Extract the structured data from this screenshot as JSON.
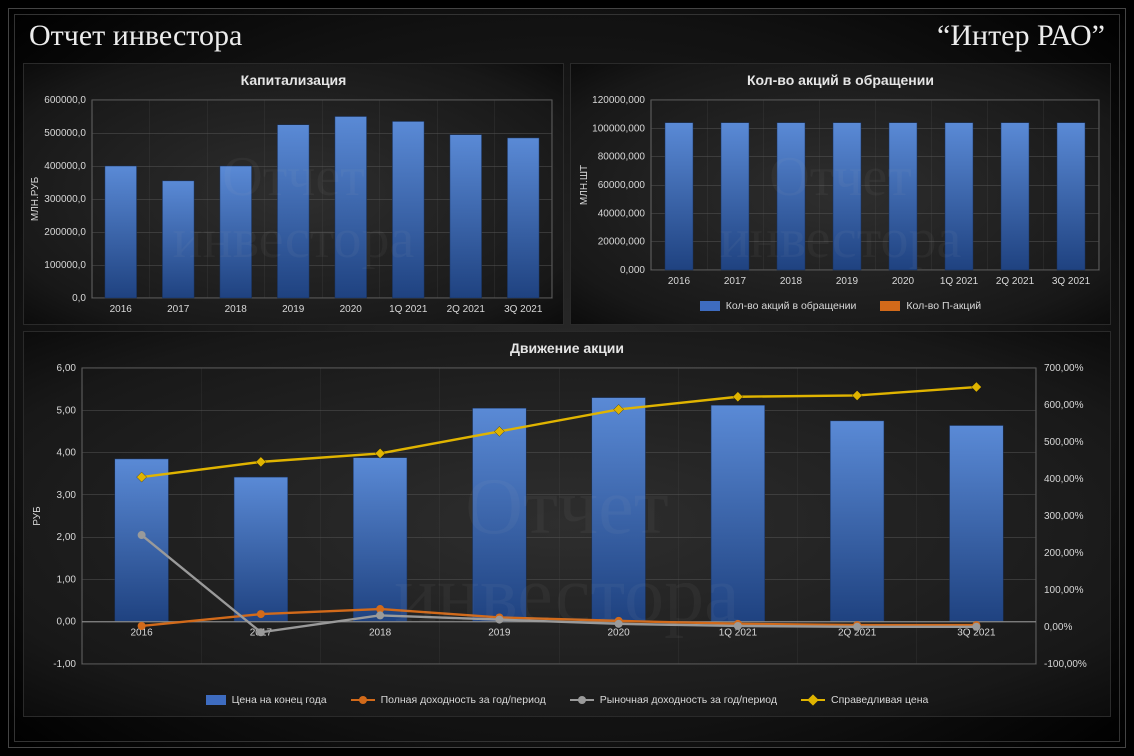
{
  "header": {
    "title_left": "Отчет инвестора",
    "title_right": "“Интер РАО”"
  },
  "watermark_line1": "Отчет",
  "watermark_line2": "инвестора",
  "categories": [
    "2016",
    "2017",
    "2018",
    "2019",
    "2020",
    "1Q 2021",
    "2Q 2021",
    "3Q 2021"
  ],
  "chart1": {
    "title": "Капитализация",
    "type": "bar",
    "y_axis_label": "МЛН.РУБ",
    "y_min": 0,
    "y_max": 600000,
    "y_step": 100000,
    "y_tick_format": ",0",
    "values": [
      400000,
      355000,
      400000,
      525000,
      550000,
      535000,
      495000,
      485000
    ],
    "bar_color_top": "#4f7fce",
    "bar_color_bottom": "#234a8c",
    "grid_color": "#555555",
    "border_color": "#666666"
  },
  "chart2": {
    "title": "Кол-во  акций  в  обращении",
    "type": "bar",
    "y_axis_label": "МЛН.ШТ",
    "y_min": 0,
    "y_max": 120000,
    "y_step": 20000,
    "y_tick_format": ",000",
    "values": [
      104000,
      104000,
      104000,
      104000,
      104000,
      104000,
      104000,
      104000
    ],
    "bar_color_top": "#4f7fce",
    "bar_color_bottom": "#234a8c",
    "legend": [
      {
        "label": "Кол-во акций в обращении",
        "type": "bar",
        "color": "#3e6cc0"
      },
      {
        "label": "Кол-во П-акций",
        "type": "bar",
        "color": "#d26a1a"
      }
    ]
  },
  "chart3": {
    "title": "Движение  акции",
    "type": "combo",
    "y_axis_label": "РУБ",
    "y_min": -1,
    "y_max": 6,
    "y_step": 1,
    "y2_min": -100,
    "y2_max": 700,
    "y2_step": 100,
    "bars": [
      3.85,
      3.42,
      3.88,
      5.05,
      5.3,
      5.12,
      4.75,
      4.64
    ],
    "series": [
      {
        "name": "Полная доходность  за год/период",
        "color": "#d26a1a",
        "marker": "circle",
        "values": [
          -0.1,
          0.18,
          0.3,
          0.1,
          0.02,
          -0.05,
          -0.08,
          -0.08
        ]
      },
      {
        "name": "Рыночная доходность  за год/период",
        "color": "#9a9a9a",
        "marker": "circle",
        "values": [
          2.05,
          -0.25,
          0.15,
          0.05,
          -0.05,
          -0.1,
          -0.12,
          -0.12
        ]
      },
      {
        "name": "Справедливая  цена",
        "color": "#e0b400",
        "marker": "diamond",
        "values": [
          3.42,
          3.78,
          3.98,
          4.5,
          5.02,
          5.32,
          5.35,
          5.55
        ]
      }
    ],
    "legend": [
      {
        "label": "Цена на конец года",
        "type": "bar",
        "color": "#3e6cc0"
      },
      {
        "label": "Полная доходность  за год/период",
        "type": "line",
        "color": "#d26a1a"
      },
      {
        "label": "Рыночная доходность  за год/период",
        "type": "line",
        "color": "#9a9a9a"
      },
      {
        "label": "Справедливая  цена",
        "type": "line",
        "color": "#e0b400",
        "marker": "diamond"
      }
    ]
  },
  "colors": {
    "background": "#1a1a1a",
    "text": "#d8d8d8",
    "grid": "#555555"
  }
}
